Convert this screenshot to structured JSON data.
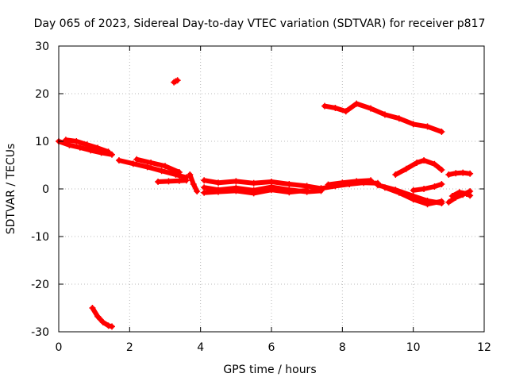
{
  "chart_data": {
    "type": "scatter",
    "title": "Day 065 of 2023, Sidereal Day-to-day VTEC variation (SDTVAR) for receiver p817",
    "xlabel": "GPS time / hours",
    "ylabel": "SDTVAR / TECUs",
    "xlim": [
      0,
      12
    ],
    "ylim": [
      -30,
      30
    ],
    "x_ticks": [
      0,
      2,
      4,
      6,
      8,
      10,
      12
    ],
    "y_ticks": [
      -30,
      -20,
      -10,
      0,
      10,
      20,
      30
    ],
    "grid": true,
    "marker": "+",
    "series": [
      {
        "name": "SDTVAR",
        "color": "#ff0000",
        "segments": [
          {
            "x": [
              0.0,
              0.3,
              0.6,
              0.9,
              1.2,
              1.5
            ],
            "y": [
              10.0,
              9.2,
              8.7,
              8.1,
              7.6,
              7.2
            ]
          },
          {
            "x": [
              0.2,
              0.5,
              0.8,
              1.1,
              1.4
            ],
            "y": [
              10.3,
              10.0,
              9.3,
              8.6,
              7.8
            ]
          },
          {
            "x": [
              1.7,
              2.1,
              2.5,
              2.9,
              3.3,
              3.6
            ],
            "y": [
              6.0,
              5.3,
              4.6,
              3.8,
              3.0,
              2.4
            ]
          },
          {
            "x": [
              2.2,
              2.6,
              3.0,
              3.4
            ],
            "y": [
              6.2,
              5.5,
              4.8,
              3.5
            ]
          },
          {
            "x": [
              2.8,
              3.1,
              3.4,
              3.6
            ],
            "y": [
              1.5,
              1.6,
              1.7,
              1.8
            ]
          },
          {
            "x": [
              3.25,
              3.3,
              3.35
            ],
            "y": [
              22.4,
              22.6,
              22.8
            ]
          },
          {
            "x": [
              0.95,
              1.1,
              1.25,
              1.4,
              1.5
            ],
            "y": [
              -25.0,
              -26.8,
              -28.0,
              -28.7,
              -28.9
            ]
          },
          {
            "x": [
              3.7,
              3.8,
              3.9
            ],
            "y": [
              3.0,
              1.0,
              -0.5
            ]
          },
          {
            "x": [
              4.1,
              4.5,
              5.0,
              5.5,
              6.0,
              6.5,
              7.0,
              7.4
            ],
            "y": [
              1.8,
              1.3,
              1.6,
              1.2,
              1.5,
              1.0,
              0.6,
              0.1
            ]
          },
          {
            "x": [
              4.1,
              4.5,
              5.0,
              5.5,
              6.0,
              6.5,
              7.0,
              7.4
            ],
            "y": [
              0.3,
              -0.2,
              0.2,
              -0.3,
              0.4,
              -0.2,
              -0.6,
              -0.4
            ]
          },
          {
            "x": [
              4.1,
              4.5,
              5.0,
              5.5,
              6.0,
              6.5,
              7.0
            ],
            "y": [
              -0.8,
              -0.6,
              -0.4,
              -0.9,
              -0.2,
              -0.7,
              -0.3
            ]
          },
          {
            "x": [
              7.4,
              7.8,
              8.2,
              8.6,
              9.0
            ],
            "y": [
              0.1,
              0.6,
              1.0,
              1.3,
              1.2
            ]
          },
          {
            "x": [
              7.6,
              8.0,
              8.4,
              8.8
            ],
            "y": [
              0.9,
              1.3,
              1.6,
              1.8
            ]
          },
          {
            "x": [
              9.0,
              9.5,
              10.0,
              10.4,
              10.8
            ],
            "y": [
              0.8,
              -0.2,
              -1.5,
              -2.5,
              -3.0
            ]
          },
          {
            "x": [
              9.2,
              9.6,
              10.0,
              10.4,
              10.8
            ],
            "y": [
              0.3,
              -0.8,
              -2.2,
              -3.2,
              -2.6
            ]
          },
          {
            "x": [
              10.0,
              10.3,
              10.6,
              10.8
            ],
            "y": [
              -0.3,
              0.0,
              0.5,
              1.0
            ]
          },
          {
            "x": [
              9.5,
              9.8,
              10.1,
              10.3,
              10.6,
              10.8
            ],
            "y": [
              3.0,
              4.2,
              5.5,
              6.0,
              5.2,
              4.0
            ]
          },
          {
            "x": [
              11.0,
              11.2,
              11.4,
              11.6
            ],
            "y": [
              3.0,
              3.3,
              3.4,
              3.2
            ]
          },
          {
            "x": [
              11.0,
              11.2,
              11.4,
              11.6
            ],
            "y": [
              -2.8,
              -1.8,
              -1.2,
              -0.5
            ]
          },
          {
            "x": [
              11.1,
              11.3,
              11.5,
              11.6
            ],
            "y": [
              -1.5,
              -0.7,
              -1.0,
              -1.4
            ]
          },
          {
            "x": [
              7.5,
              7.8,
              8.1,
              8.4,
              8.8,
              9.2,
              9.6,
              10.0,
              10.4,
              10.8
            ],
            "y": [
              17.4,
              17.0,
              16.3,
              17.9,
              16.9,
              15.6,
              14.8,
              13.6,
              13.1,
              12.0
            ]
          }
        ]
      }
    ]
  }
}
